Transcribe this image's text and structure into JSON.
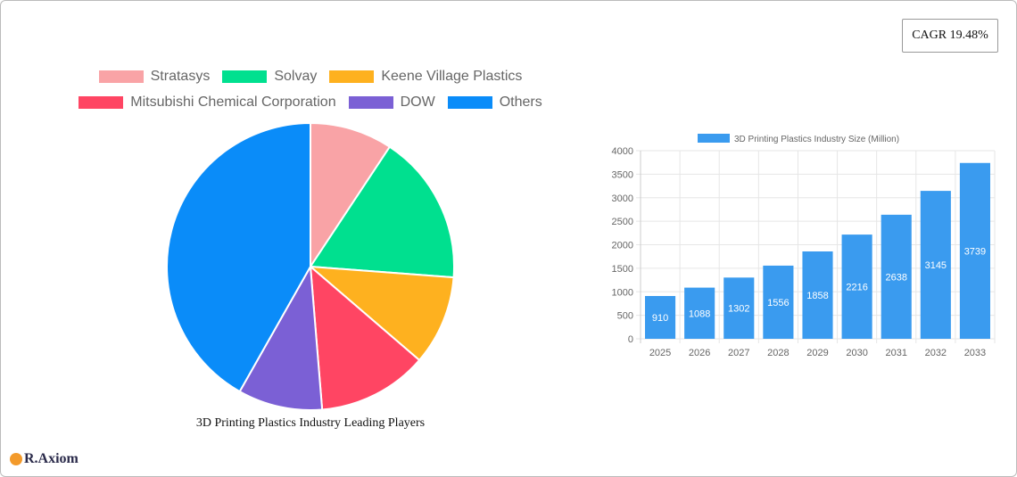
{
  "cagr": "CAGR 19.48%",
  "logo": "R.Axiom",
  "chart_data": [
    {
      "type": "pie",
      "title": "3D Printing Plastics Industry Leading Players",
      "legend_position": "top",
      "labels": [
        "Stratasys",
        "Solvay",
        "Keene Village Plastics",
        "Mitsubishi Chemical Corporation",
        "DOW",
        "Others"
      ],
      "values": [
        9.3,
        16.9,
        10.1,
        12.4,
        9.5,
        41.8
      ],
      "colors": [
        "#f9a3a6",
        "#00e08f",
        "#feb11f",
        "#ff4563",
        "#7b60d5",
        "#0a8cf9"
      ]
    },
    {
      "type": "bar",
      "categories": [
        "2025",
        "2026",
        "2027",
        "2028",
        "2029",
        "2030",
        "2031",
        "2032",
        "2033"
      ],
      "series": [
        {
          "name": "3D Printing Plastics Industry Size (Million)",
          "values": [
            910,
            1088,
            1302,
            1556,
            1858,
            2216,
            2638,
            3145,
            3739
          ]
        }
      ],
      "ylim": [
        0,
        4000
      ],
      "yticks": [
        "0",
        "500",
        "1000",
        "1500",
        "2000",
        "2500",
        "3000",
        "3500",
        "4000"
      ],
      "grid": true,
      "legend_position": "top",
      "color": "#3a9bef"
    }
  ]
}
